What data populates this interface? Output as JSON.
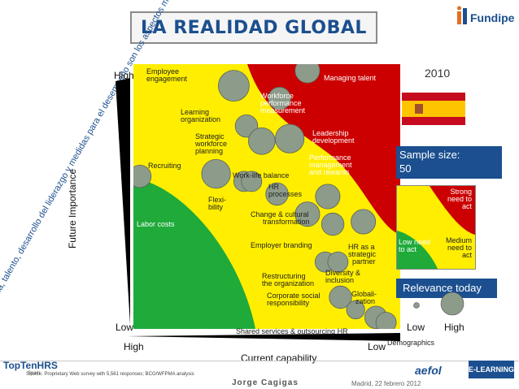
{
  "title": "LA REALIDAD GLOBAL",
  "logo_text": "Fundipe",
  "year": "2010",
  "side_text": "En España, talento, desarrollo del liderazgo y medidas para el desempeño son los aspectos más críticos",
  "chart_data": {
    "type": "scatter",
    "title": "LA REALIDAD GLOBAL",
    "xlabel": "Current capability",
    "ylabel": "Future Importance",
    "x_tick_labels": [
      "High",
      "Low"
    ],
    "y_tick_labels": [
      "High",
      "Low"
    ],
    "x_direction": "decreasing",
    "regions": [
      {
        "name": "Strong need to act",
        "color": "#cc0000"
      },
      {
        "name": "Medium need to act",
        "color": "#ffee00"
      },
      {
        "name": "Low need to act",
        "color": "#1faa3a"
      }
    ],
    "points": [
      {
        "label": "Employee engagement",
        "x": 0.37,
        "y": 0.94,
        "size": 1.0
      },
      {
        "label": "Managing talent",
        "x": 0.66,
        "y": 1.0,
        "size": 0.7
      },
      {
        "label": "Workforce performance measurement",
        "x": 0.55,
        "y": 0.89,
        "size": 0.6
      },
      {
        "label": "Learning organization",
        "x": 0.42,
        "y": 0.78,
        "size": 0.6
      },
      {
        "label": "Strategic workforce planning",
        "x": 0.48,
        "y": 0.72,
        "size": 0.8
      },
      {
        "label": "Leadership development",
        "x": 0.59,
        "y": 0.73,
        "size": 0.9
      },
      {
        "label": "Recruiting",
        "x": 0.3,
        "y": 0.59,
        "size": 0.9
      },
      {
        "label": "Performance management and rewards",
        "x": 0.74,
        "y": 0.5,
        "size": 0.7
      },
      {
        "label": "Work-life balance",
        "x": 0.41,
        "y": 0.56,
        "size": 0.5
      },
      {
        "label": "HR processes",
        "x": 0.54,
        "y": 0.51,
        "size": 0.6
      },
      {
        "label": "Flexibility",
        "x": 0.44,
        "y": 0.56,
        "size": 0.5
      },
      {
        "label": "Labor costs",
        "x": 0.0,
        "y": 0.58,
        "size": 0.6
      },
      {
        "label": "Change & cultural transformation",
        "x": 0.66,
        "y": 0.43,
        "size": 0.7
      },
      {
        "label": "Employer branding",
        "x": 0.76,
        "y": 0.39,
        "size": 0.6
      },
      {
        "label": "HR as a strategic partner",
        "x": 0.88,
        "y": 0.4,
        "size": 0.7
      },
      {
        "label": "Restructuring the organization",
        "x": 0.73,
        "y": 0.24,
        "size": 0.5
      },
      {
        "label": "Diversity & inclusion",
        "x": 0.78,
        "y": 0.24,
        "size": 0.5
      },
      {
        "label": "Corporate social responsibility",
        "x": 0.79,
        "y": 0.1,
        "size": 0.6
      },
      {
        "label": "Globalization",
        "x": 0.85,
        "y": 0.05,
        "size": 0.4
      },
      {
        "label": "Shared services & outsourcing HR",
        "x": 0.93,
        "y": 0.02,
        "size": 0.6
      },
      {
        "label": "Demographics",
        "x": 0.97,
        "y": 0.0,
        "size": 0.5
      }
    ],
    "grid": false
  },
  "axes": {
    "y_high": "High",
    "y_low": "Low",
    "x_high": "High",
    "x_low": "Low",
    "y_title": "Future Importance",
    "x_title": "Current capability"
  },
  "sample": {
    "label": "Sample size:",
    "value": "50"
  },
  "legend": {
    "strong": "Strong need to act",
    "medium": "Medium need to act",
    "low": "Low need to act"
  },
  "relevance": {
    "title": "Relevance today",
    "low": "Low",
    "high": "High"
  },
  "footer": {
    "source": "Source: Proprietary Web survey with 5,561 responses; BCG/WFPMA analysis",
    "author": "Jorge Cagigas",
    "date": "Madrid, 22 febrero 2012",
    "brand_left": "TopTenHRS",
    "brand_left_sub": "Spain",
    "brand_mid": "aefol",
    "brand_right": "E-LEARNING"
  },
  "colors": {
    "red": "#cc0000",
    "yellow": "#ffee00",
    "green": "#1faa3a",
    "navy": "#1b4f8f",
    "bubble": "#8d9b8a"
  }
}
